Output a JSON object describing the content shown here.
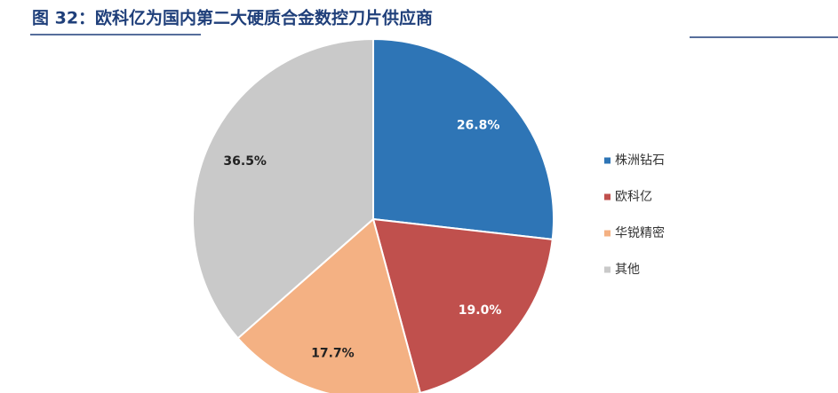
{
  "chart_data": {
    "type": "pie",
    "title": "图 32：欧科亿为国内第二大硬质合金数控刀片供应商",
    "categories": [
      "株洲钻石",
      "欧科亿",
      "华锐精密",
      "其他"
    ],
    "values": [
      26.8,
      19.0,
      17.7,
      36.5
    ],
    "value_labels": [
      "26.8%",
      "19.0%",
      "17.7%",
      "36.5%"
    ],
    "colors": [
      "#2e75b6",
      "#c0504d",
      "#f4b183",
      "#c9c9c9"
    ],
    "legend": "right"
  }
}
